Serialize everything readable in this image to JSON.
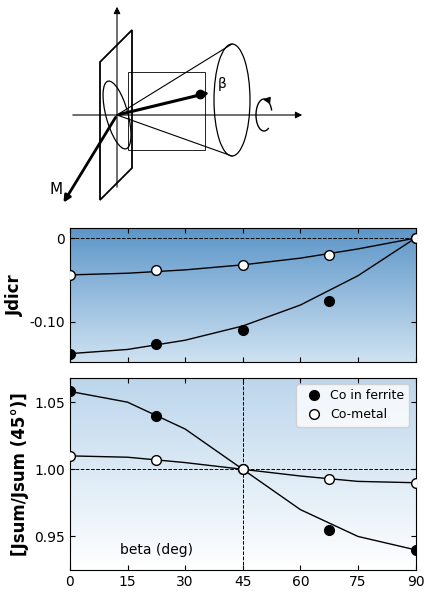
{
  "diagram": {
    "labels": [
      "M",
      "β"
    ]
  },
  "chart_data": [
    {
      "type": "scatter",
      "ylabel": "Jdicr",
      "xlim": [
        0,
        90
      ],
      "xticks": [
        0,
        15,
        30,
        45,
        60,
        75,
        90
      ],
      "ylim": [
        -0.148,
        0.012
      ],
      "yticks": [
        0,
        {
          "value": -0.1,
          "label": "-0.10"
        }
      ],
      "tick_labels": "y",
      "reference_lines": {
        "y": [
          0
        ]
      },
      "series": [
        {
          "color": "#000000",
          "marker": "filled circle",
          "x": [
            0,
            22.5,
            45,
            67.5,
            90
          ],
          "values": [
            -0.138,
            -0.127,
            -0.11,
            -0.075,
            0.0
          ],
          "fit": {
            "line_style": "solid",
            "x": [
              0,
              15,
              30,
              45,
              60,
              75,
              90
            ],
            "values": [
              -0.138,
              -0.133,
              -0.122,
              -0.105,
              -0.08,
              -0.045,
              0.0
            ]
          }
        },
        {
          "color": "#000000",
          "marker": "open circle",
          "x": [
            0,
            22.5,
            45,
            67.5,
            90
          ],
          "values": [
            -0.044,
            -0.038,
            -0.032,
            -0.02,
            0.0
          ],
          "fit": {
            "line_style": "solid",
            "x": [
              0,
              15,
              30,
              45,
              60,
              75,
              90
            ],
            "values": [
              -0.044,
              -0.042,
              -0.038,
              -0.032,
              -0.024,
              -0.013,
              0.0
            ]
          }
        }
      ]
    },
    {
      "type": "scatter",
      "ylabel": "[Jsum/Jsum (45°)]",
      "xlim": [
        0,
        90
      ],
      "xticks": [
        0,
        15,
        30,
        45,
        60,
        75,
        90
      ],
      "ylim": [
        0.925,
        1.068
      ],
      "yticks": [
        {
          "value": 0.95,
          "label": "0.95"
        },
        {
          "value": 1.0,
          "label": "1.00"
        },
        {
          "value": 1.05,
          "label": "1.05"
        }
      ],
      "legend": "upper right",
      "reference_lines": {
        "y": [
          1.0
        ],
        "x": [
          45
        ]
      },
      "annotations": [
        {
          "text": "beta (deg)",
          "x": 22.5,
          "y": 0.94
        }
      ],
      "series": [
        {
          "name": "Co in ferrite",
          "color": "#000000",
          "marker": "filled circle",
          "x": [
            0,
            22.5,
            45,
            67.5,
            90
          ],
          "values": [
            1.058,
            1.04,
            1.0,
            0.955,
            0.94
          ],
          "fit": {
            "line_style": "solid",
            "x": [
              0,
              15,
              30,
              45,
              60,
              75,
              90
            ],
            "values": [
              1.058,
              1.05,
              1.03,
              1.0,
              0.97,
              0.95,
              0.94
            ]
          }
        },
        {
          "name": "Co-metal",
          "color": "#000000",
          "marker": "open circle",
          "x": [
            0,
            22.5,
            45,
            67.5,
            90
          ],
          "values": [
            1.01,
            1.007,
            1.0,
            0.993,
            0.99
          ],
          "fit": {
            "line_style": "solid",
            "x": [
              0,
              15,
              30,
              45,
              60,
              75,
              90
            ],
            "values": [
              1.01,
              1.009,
              1.005,
              1.0,
              0.995,
              0.991,
              0.99
            ]
          }
        }
      ]
    }
  ]
}
